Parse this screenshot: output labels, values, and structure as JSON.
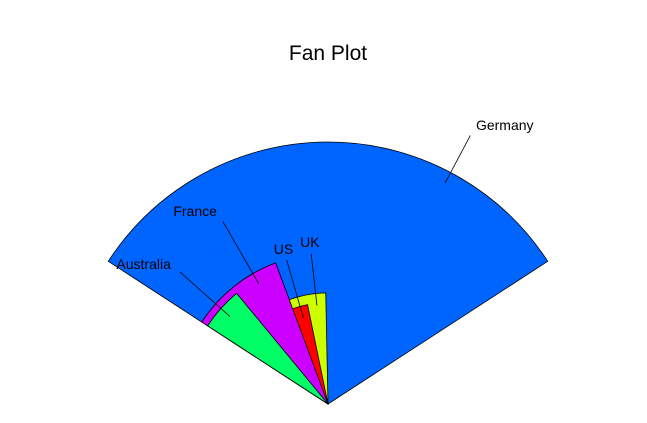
{
  "chart_data": {
    "type": "fan",
    "title": "Fan Plot",
    "series": [
      {
        "name": "Germany",
        "value": 100,
        "color": "#0064FF"
      },
      {
        "name": "UK",
        "value": 18,
        "color": "#CCFF00"
      },
      {
        "name": "US",
        "value": 15,
        "color": "#FF0000"
      },
      {
        "name": "France",
        "value": 33,
        "color": "#CC00FF"
      },
      {
        "name": "Australia",
        "value": 30,
        "color": "#00FF66"
      }
    ]
  }
}
